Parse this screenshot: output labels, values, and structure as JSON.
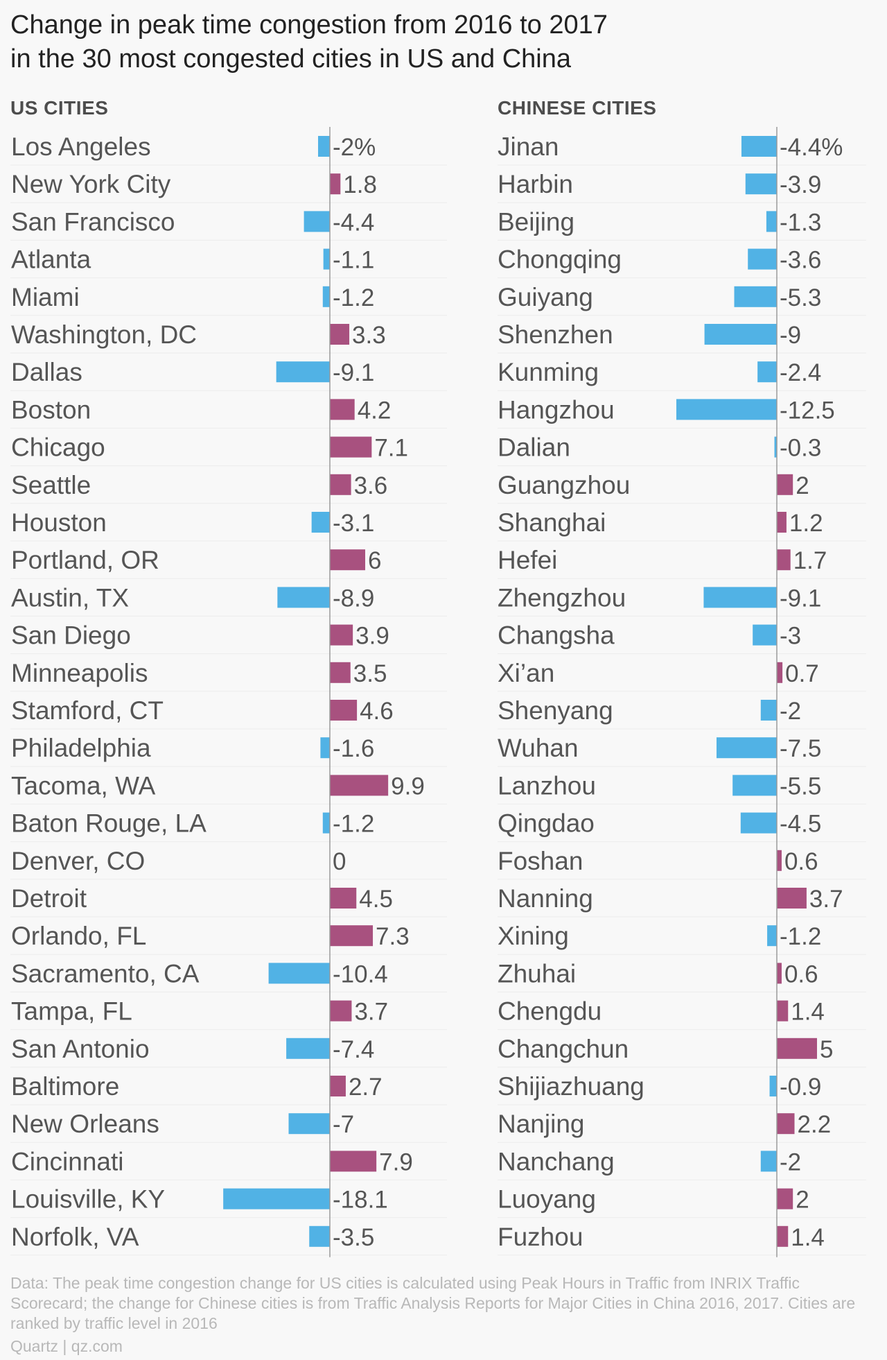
{
  "title_line1": "Change in peak time congestion from 2016 to 2017",
  "title_line2": "in the 30 most congested cities in US and China",
  "footer": "Data: The peak time congestion change for US cities is calculated using Peak Hours in Traffic from INRIX Traffic Scorecard; the change for Chinese cities is from Traffic Analysis Reports for Major Cities in China 2016, 2017. Cities are ranked by traffic level in 2016",
  "credit": "Quartz | qz.com",
  "colors": {
    "negative": "#51b2e5",
    "positive": "#a8517f"
  },
  "chart_data": [
    {
      "type": "bar",
      "orientation": "horizontal",
      "title": "US CITIES",
      "categories": [
        "Los Angeles",
        "New York City",
        "San Francisco",
        "Atlanta",
        "Miami",
        "Washington, DC",
        "Dallas",
        "Boston",
        "Chicago",
        "Seattle",
        "Houston",
        "Portland, OR",
        "Austin, TX",
        "San Diego",
        "Minneapolis",
        "Stamford, CT",
        "Philadelphia",
        "Tacoma, WA",
        "Baton Rouge, LA",
        "Denver, CO",
        "Detroit",
        "Orlando, FL",
        "Sacramento, CA",
        "Tampa, FL",
        "San Antonio",
        "Baltimore",
        "New Orleans",
        "Cincinnati",
        "Louisville, KY",
        "Norfolk, VA"
      ],
      "values": [
        -2,
        1.8,
        -4.4,
        -1.1,
        -1.2,
        3.3,
        -9.1,
        4.2,
        7.1,
        3.6,
        -3.1,
        6,
        -8.9,
        3.9,
        3.5,
        4.6,
        -1.6,
        9.9,
        -1.2,
        0,
        4.5,
        7.3,
        -10.4,
        3.7,
        -7.4,
        2.7,
        -7,
        7.9,
        -18.1,
        -3.5
      ],
      "value_labels": [
        "-2%",
        "1.8",
        "-4.4",
        "-1.1",
        "-1.2",
        "3.3",
        "-9.1",
        "4.2",
        "7.1",
        "3.6",
        "-3.1",
        "6",
        "-8.9",
        "3.9",
        "3.5",
        "4.6",
        "-1.6",
        "9.9",
        "-1.2",
        "0",
        "4.5",
        "7.3",
        "-10.4",
        "3.7",
        "-7.4",
        "2.7",
        "-7",
        "7.9",
        "-18.1",
        "-3.5"
      ]
    },
    {
      "type": "bar",
      "orientation": "horizontal",
      "title": "CHINESE CITIES",
      "categories": [
        "Jinan",
        "Harbin",
        "Beijing",
        "Chongqing",
        "Guiyang",
        "Shenzhen",
        "Kunming",
        "Hangzhou",
        "Dalian",
        "Guangzhou",
        "Shanghai",
        "Hefei",
        "Zhengzhou",
        "Changsha",
        "Xi’an",
        "Shenyang",
        "Wuhan",
        "Lanzhou",
        "Qingdao",
        "Foshan",
        "Nanning",
        "Xining",
        "Zhuhai",
        "Chengdu",
        "Changchun",
        "Shijiazhuang",
        "Nanjing",
        "Nanchang",
        "Luoyang",
        "Fuzhou"
      ],
      "values": [
        -4.4,
        -3.9,
        -1.3,
        -3.6,
        -5.3,
        -9,
        -2.4,
        -12.5,
        -0.3,
        2,
        1.2,
        1.7,
        -9.1,
        -3,
        0.7,
        -2,
        -7.5,
        -5.5,
        -4.5,
        0.6,
        3.7,
        -1.2,
        0.6,
        1.4,
        5,
        -0.9,
        2.2,
        -2,
        2,
        1.4
      ],
      "value_labels": [
        "-4.4%",
        "-3.9",
        "-1.3",
        "-3.6",
        "-5.3",
        "-9",
        "-2.4",
        "-12.5",
        "-0.3",
        "2",
        "1.2",
        "1.7",
        "-9.1",
        "-3",
        "0.7",
        "-2",
        "-7.5",
        "-5.5",
        "-4.5",
        "0.6",
        "3.7",
        "-1.2",
        "0.6",
        "1.4",
        "5",
        "-0.9",
        "2.2",
        "-2",
        "2",
        "1.4"
      ]
    }
  ]
}
